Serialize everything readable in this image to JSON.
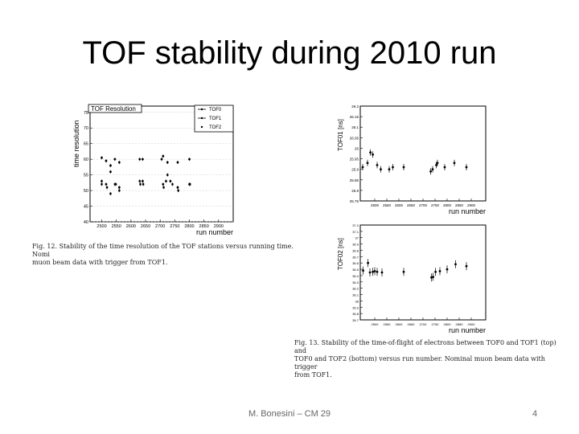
{
  "slide": {
    "title": "TOF stability during 2010 run",
    "footer": "M. Bonesini – CM 29",
    "page": "4"
  },
  "chart_data": [
    {
      "type": "scatter",
      "title": "TOF Resolution",
      "xlabel": "run number",
      "ylabel": "time resolution",
      "xlim": [
        2460,
        2950
      ],
      "ylim": [
        40,
        77
      ],
      "x_ticks": [
        "2500",
        "2550",
        "2600",
        "2650",
        "2700",
        "2750",
        "2800",
        "2850",
        "2900"
      ],
      "y_ticks": [
        "40",
        "45",
        "50",
        "55",
        "60",
        "65",
        "70",
        "75"
      ],
      "legend": {
        "position": "top-right",
        "entries": [
          "TOF0",
          "TOF1",
          "TOF2"
        ]
      },
      "series": [
        {
          "name": "TOF0",
          "values": [
            [
              2500,
              60.5
            ],
            [
              2515,
              59.5
            ],
            [
              2530,
              58
            ],
            [
              2545,
              60
            ],
            [
              2560,
              59
            ],
            [
              2630,
              60
            ],
            [
              2640,
              60
            ],
            [
              2705,
              60
            ],
            [
              2710,
              61
            ],
            [
              2725,
              59
            ],
            [
              2760,
              59
            ],
            [
              2800,
              60
            ]
          ]
        },
        {
          "name": "TOF1",
          "values": [
            [
              2500,
              53
            ],
            [
              2515,
              52
            ],
            [
              2530,
              56
            ],
            [
              2548,
              52
            ],
            [
              2560,
              51
            ],
            [
              2630,
              53
            ],
            [
              2640,
              53
            ],
            [
              2710,
              52
            ],
            [
              2720,
              53
            ],
            [
              2735,
              53
            ],
            [
              2760,
              51
            ],
            [
              2800,
              52
            ]
          ]
        },
        {
          "name": "TOF2",
          "values": [
            [
              2500,
              52
            ],
            [
              2518,
              51
            ],
            [
              2530,
              49
            ],
            [
              2545,
              52
            ],
            [
              2560,
              50
            ],
            [
              2632,
              52
            ],
            [
              2642,
              52
            ],
            [
              2712,
              51
            ],
            [
              2725,
              55
            ],
            [
              2742,
              52
            ],
            [
              2762,
              50
            ],
            [
              2802,
              52
            ]
          ]
        }
      ],
      "caption": [
        "Fig. 12. Stability of the time resolution of the TOF stations versus running time. Nomi",
        "muon beam data with trigger from TOF1."
      ]
    },
    {
      "type": "scatter",
      "title": "",
      "xlabel": "run number",
      "ylabel": "TOF01 [ns]",
      "xlim": [
        2440,
        2960
      ],
      "ylim": [
        25.75,
        26.2
      ],
      "x_ticks": [
        "2500",
        "2550",
        "2600",
        "2650",
        "2700",
        "2750",
        "2800",
        "2850",
        "2900"
      ],
      "y_ticks": [
        "25.75",
        "25.8",
        "25.85",
        "25.9",
        "25.95",
        "26",
        "26.05",
        "26.1",
        "26.15",
        "26.2"
      ],
      "series": [
        {
          "values": [
            [
              2450,
              25.91
            ],
            [
              2470,
              25.93
            ],
            [
              2482,
              25.98
            ],
            [
              2492,
              25.97
            ],
            [
              2510,
              25.92
            ],
            [
              2525,
              25.9
            ],
            [
              2560,
              25.9
            ],
            [
              2575,
              25.91
            ],
            [
              2620,
              25.91
            ],
            [
              2732,
              25.89
            ],
            [
              2740,
              25.9
            ],
            [
              2755,
              25.92
            ],
            [
              2760,
              25.93
            ],
            [
              2790,
              25.91
            ],
            [
              2830,
              25.93
            ],
            [
              2880,
              25.91
            ]
          ]
        }
      ]
    },
    {
      "type": "scatter",
      "title": "",
      "xlabel": "run number",
      "ylabel": "TOF02 [ns]",
      "xlim": [
        2440,
        2960
      ],
      "ylim": [
        35.7,
        37.2
      ],
      "x_ticks": [
        "2500",
        "2550",
        "2600",
        "2650",
        "2700",
        "2750",
        "2800",
        "2850",
        "2900"
      ],
      "y_ticks": [
        "35.7",
        "35.8",
        "35.9",
        "36",
        "36.1",
        "36.2",
        "36.3",
        "36.4",
        "36.5",
        "36.6",
        "36.7",
        "36.8",
        "36.9",
        "37",
        "37.1",
        "37.2"
      ],
      "series": [
        {
          "values": [
            [
              2452,
              36.48
            ],
            [
              2472,
              36.6
            ],
            [
              2480,
              36.45
            ],
            [
              2492,
              36.46
            ],
            [
              2500,
              36.47
            ],
            [
              2510,
              36.46
            ],
            [
              2530,
              36.45
            ],
            [
              2620,
              36.46
            ],
            [
              2735,
              36.37
            ],
            [
              2742,
              36.38
            ],
            [
              2752,
              36.46
            ],
            [
              2770,
              36.47
            ],
            [
              2800,
              36.5
            ],
            [
              2835,
              36.58
            ],
            [
              2880,
              36.55
            ]
          ]
        }
      ],
      "caption": [
        "Fig. 13. Stability of the time-of-flight of electrons between TOF0 and TOF1 (top) and",
        "TOF0 and TOF2 (bottom) versus run number. Nominal muon beam data with trigger",
        "from TOF1."
      ]
    }
  ]
}
